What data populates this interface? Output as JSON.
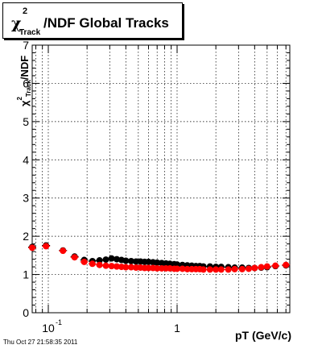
{
  "title": {
    "chi": "χ",
    "sup": "2",
    "sub": "Track",
    "rest": "/NDF  Global Tracks"
  },
  "ylabel": {
    "chi": "χ",
    "sup": "2",
    "sub": "Track",
    "rest": "/NDF"
  },
  "xlabel": "pT (GeV/c)",
  "timestamp": "Thu Oct 27 21:58:35 2011",
  "chart_data": {
    "type": "scatter",
    "x_scale": "log",
    "xlim": [
      0.075,
      7.5
    ],
    "ylim": [
      0,
      7
    ],
    "y_ticks": [
      0,
      1,
      2,
      3,
      4,
      5,
      6,
      7
    ],
    "x_tick_labels": [
      {
        "value": 0.1,
        "label": "10",
        "sup": "-1"
      },
      {
        "value": 1,
        "label": "1",
        "sup": ""
      }
    ],
    "grid": true,
    "series": [
      {
        "color": "#000000",
        "x": [
          0.075,
          0.096,
          0.13,
          0.16,
          0.19,
          0.22,
          0.25,
          0.28,
          0.31,
          0.34,
          0.37,
          0.4,
          0.44,
          0.48,
          0.52,
          0.56,
          0.6,
          0.65,
          0.7,
          0.76,
          0.82,
          0.88,
          0.95,
          1.0,
          1.1,
          1.2,
          1.3,
          1.4,
          1.5,
          1.6,
          1.8,
          2.0,
          2.2,
          2.5,
          2.8,
          3.2,
          3.6,
          4.0,
          4.5,
          5.0,
          5.8,
          7.0
        ],
        "y": [
          1.72,
          1.76,
          1.63,
          1.47,
          1.38,
          1.35,
          1.37,
          1.39,
          1.42,
          1.4,
          1.38,
          1.36,
          1.35,
          1.34,
          1.34,
          1.33,
          1.33,
          1.32,
          1.31,
          1.3,
          1.29,
          1.28,
          1.27,
          1.26,
          1.25,
          1.24,
          1.23,
          1.22,
          1.22,
          1.21,
          1.21,
          1.2,
          1.2,
          1.19,
          1.18,
          1.18,
          1.17,
          1.17,
          1.18,
          1.19,
          1.22,
          1.24
        ]
      },
      {
        "color": "#ff0000",
        "x": [
          0.075,
          0.096,
          0.13,
          0.16,
          0.19,
          0.22,
          0.25,
          0.28,
          0.31,
          0.34,
          0.37,
          0.4,
          0.44,
          0.48,
          0.52,
          0.56,
          0.6,
          0.65,
          0.7,
          0.76,
          0.82,
          0.88,
          0.95,
          1.0,
          1.1,
          1.2,
          1.3,
          1.4,
          1.5,
          1.6,
          1.8,
          2.0,
          2.2,
          2.5,
          2.8,
          3.2,
          3.6,
          4.0,
          4.5,
          5.0,
          5.8,
          7.0
        ],
        "y": [
          1.7,
          1.74,
          1.62,
          1.45,
          1.33,
          1.28,
          1.25,
          1.23,
          1.22,
          1.21,
          1.2,
          1.19,
          1.19,
          1.18,
          1.18,
          1.17,
          1.17,
          1.17,
          1.16,
          1.16,
          1.16,
          1.16,
          1.15,
          1.15,
          1.15,
          1.14,
          1.14,
          1.14,
          1.14,
          1.13,
          1.13,
          1.13,
          1.13,
          1.13,
          1.14,
          1.14,
          1.15,
          1.17,
          1.19,
          1.21,
          1.23,
          1.25
        ]
      }
    ]
  }
}
